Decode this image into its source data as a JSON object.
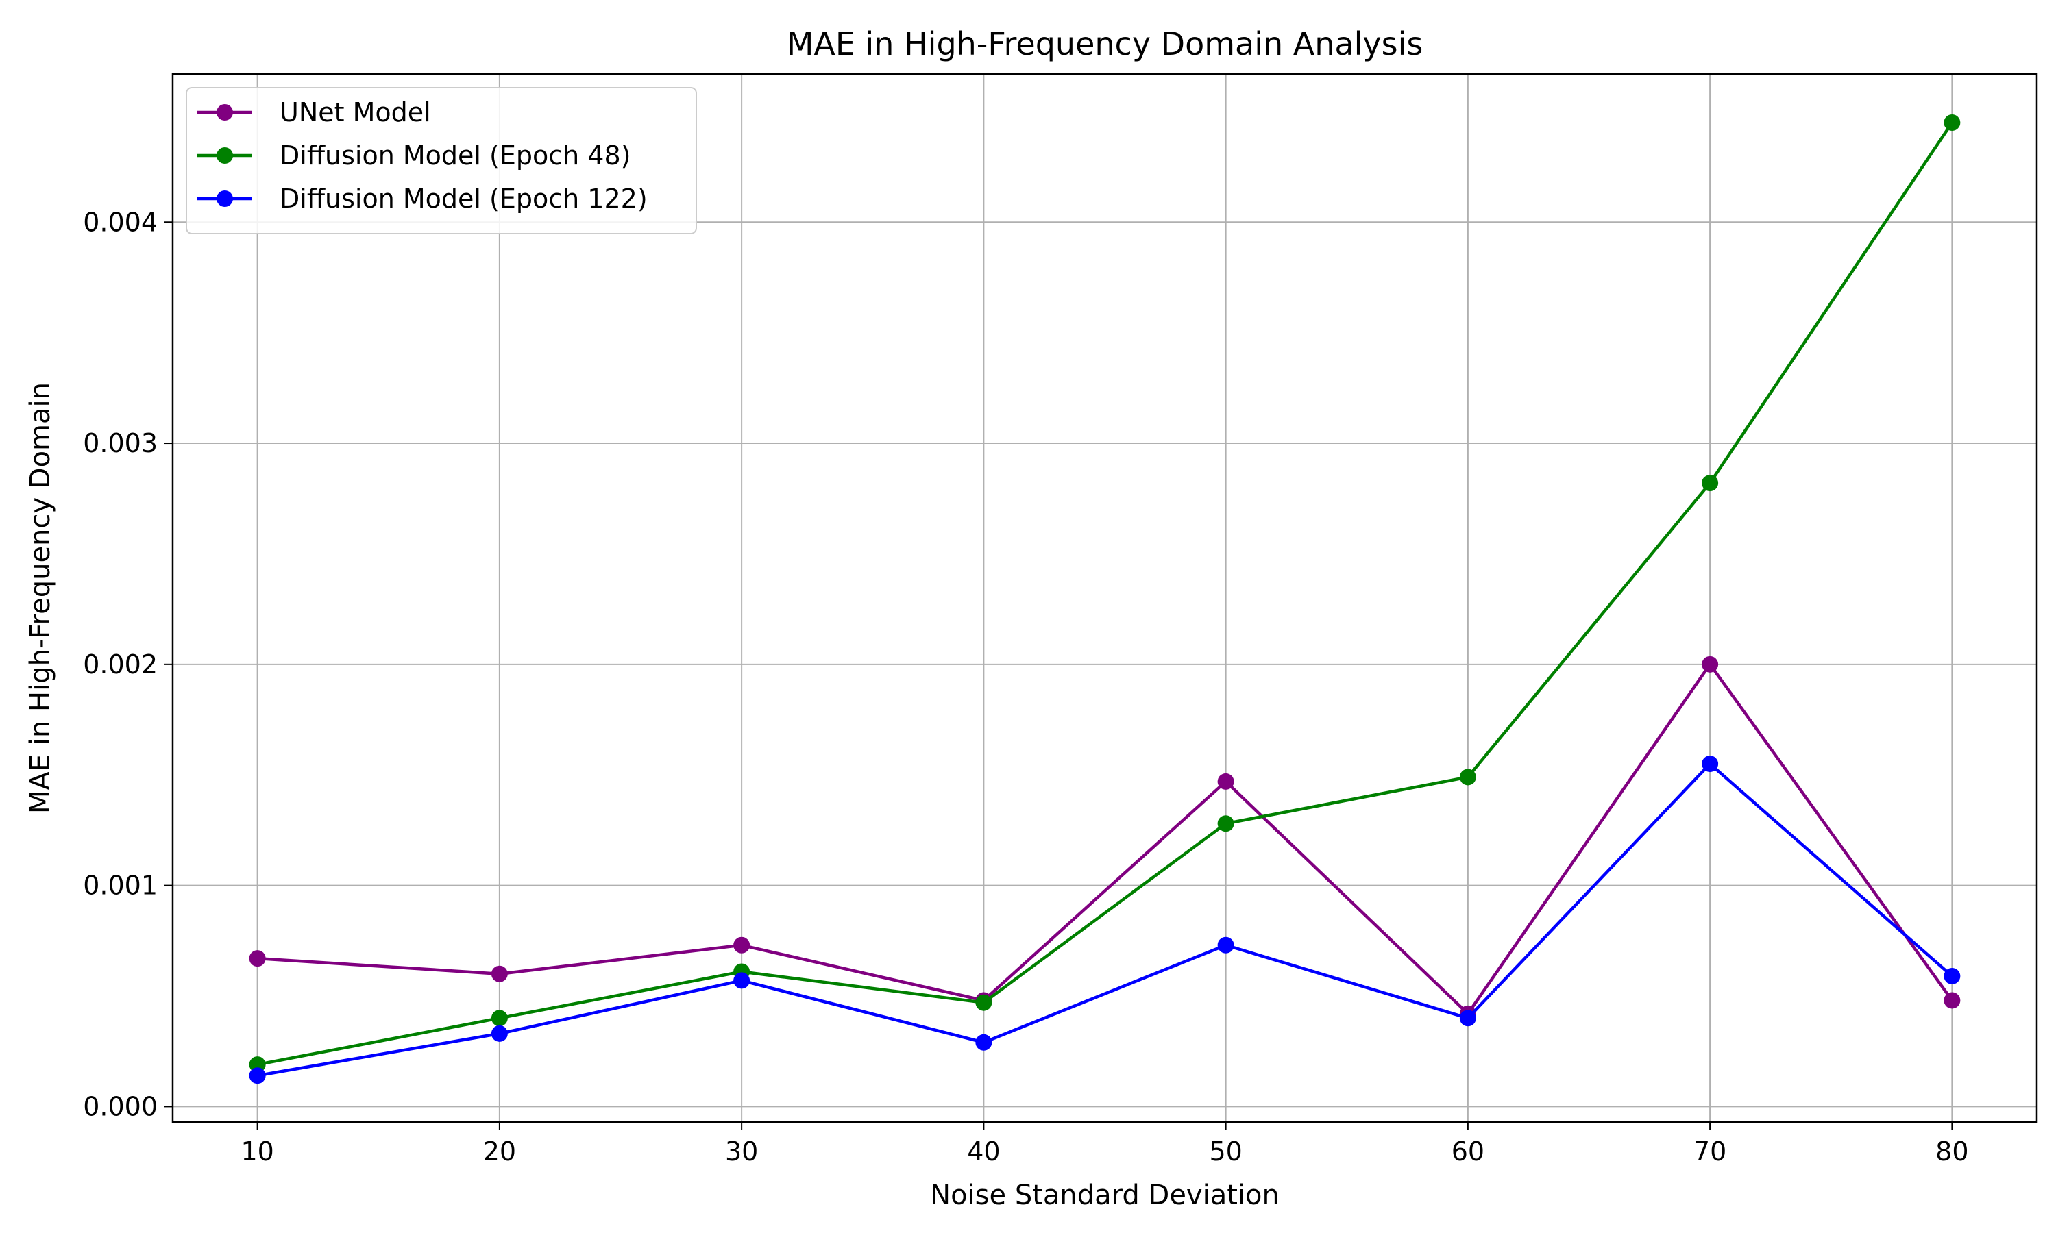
{
  "chart_data": {
    "type": "line",
    "title": "MAE in High-Frequency Domain Analysis",
    "xlabel": "Noise Standard Deviation",
    "ylabel": "MAE in High-Frequency Domain",
    "x": [
      10,
      20,
      30,
      40,
      50,
      60,
      70,
      80
    ],
    "x_ticks": [
      "10",
      "20",
      "30",
      "40",
      "50",
      "60",
      "70",
      "80"
    ],
    "y_ticks": [
      "0.000",
      "0.001",
      "0.002",
      "0.003",
      "0.004"
    ],
    "y_tick_values": [
      0,
      0.001,
      0.002,
      0.003,
      0.004
    ],
    "xlim": [
      6.5,
      83.5
    ],
    "ylim": [
      -7e-05,
      0.00467
    ],
    "grid": true,
    "legend_position": "upper-left",
    "series": [
      {
        "name": "UNet Model",
        "color": "#800080",
        "values": [
          0.00067,
          0.0006,
          0.00073,
          0.00048,
          0.00147,
          0.00042,
          0.002,
          0.00048
        ]
      },
      {
        "name": "Diffusion Model (Epoch 48)",
        "color": "#008000",
        "values": [
          0.00019,
          0.0004,
          0.00061,
          0.00047,
          0.00128,
          0.00149,
          0.00282,
          0.00445
        ]
      },
      {
        "name": "Diffusion Model (Epoch 122)",
        "color": "#0000ff",
        "values": [
          0.00014,
          0.00033,
          0.00057,
          0.00029,
          0.00073,
          0.0004,
          0.00155,
          0.00059
        ]
      }
    ]
  }
}
